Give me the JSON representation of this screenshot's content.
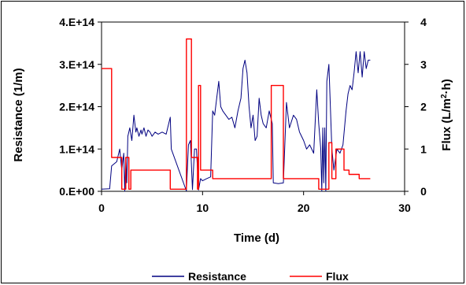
{
  "chart_data": {
    "type": "line",
    "xlabel": "Time (d)",
    "ylabel": "Resistance (1/m)",
    "y2label_main": "Flux (L/m",
    "y2label_sup": "2",
    "y2label_tail": "·h)",
    "xlim": [
      0,
      30
    ],
    "ylim": [
      0,
      400000000000000.0
    ],
    "y2lim": [
      0,
      4
    ],
    "x_ticks": [
      "0",
      "10",
      "20",
      "30"
    ],
    "y_ticks": [
      "0.E+00",
      "1.E+14",
      "2.E+14",
      "3.E+14",
      "4.E+14"
    ],
    "y2_ticks": [
      "0",
      "1",
      "2",
      "3",
      "4"
    ],
    "legend_position": "bottom",
    "series": [
      {
        "name": "Resistance",
        "color": "#000080",
        "axis": "left",
        "x": [
          0,
          0.8,
          1.0,
          1.5,
          1.8,
          2.0,
          2.2,
          2.3,
          2.4,
          2.5,
          2.6,
          2.8,
          3.0,
          3.2,
          3.4,
          3.5,
          3.7,
          3.9,
          4.0,
          4.2,
          4.4,
          4.6,
          4.8,
          5.0,
          5.3,
          5.6,
          6.0,
          6.4,
          6.8,
          6.9,
          8.4,
          8.6,
          8.8,
          9.0,
          9.2,
          9.4,
          9.6,
          9.8,
          10.0,
          10.4,
          10.8,
          11.0,
          11.2,
          11.4,
          11.6,
          11.8,
          12.0,
          12.3,
          12.6,
          12.9,
          13.2,
          13.5,
          13.8,
          14.0,
          14.2,
          14.4,
          14.6,
          14.8,
          15.0,
          15.2,
          15.4,
          15.6,
          15.8,
          16.0,
          16.3,
          16.6,
          16.9,
          17.0,
          17.5,
          18.0,
          18.3,
          18.6,
          19.0,
          19.3,
          19.6,
          20.0,
          20.3,
          20.6,
          21.0,
          21.3,
          21.5,
          21.7,
          21.8,
          21.9,
          22.0,
          22.1,
          22.2,
          22.3,
          22.5,
          22.8,
          23.0,
          23.3,
          23.6,
          23.9,
          24.2,
          24.4,
          24.6,
          24.8,
          25.0,
          25.2,
          25.4,
          25.6,
          25.8,
          26.0,
          26.2,
          26.4,
          26.6
        ],
        "values": [
          5000000000000.0,
          6000000000000.0,
          60000000000000.0,
          70000000000000.0,
          100000000000000.0,
          50000000000000.0,
          90000000000000.0,
          0,
          80000000000000.0,
          20000000000000.0,
          130000000000000.0,
          150000000000000.0,
          120000000000000.0,
          180000000000000.0,
          140000000000000.0,
          150000000000000.0,
          130000000000000.0,
          145000000000000.0,
          135000000000000.0,
          150000000000000.0,
          130000000000000.0,
          145000000000000.0,
          140000000000000.0,
          130000000000000.0,
          140000000000000.0,
          135000000000000.0,
          140000000000000.0,
          135000000000000.0,
          175000000000000.0,
          100000000000000.0,
          1000000000000.0,
          110000000000000.0,
          120000000000000.0,
          4000000000000.0,
          100000000000000.0,
          100000000000000.0,
          3000000000000.0,
          30000000000000.0,
          25000000000000.0,
          30000000000000.0,
          34000000000000.0,
          190000000000000.0,
          180000000000000.0,
          220000000000000.0,
          260000000000000.0,
          200000000000000.0,
          190000000000000.0,
          180000000000000.0,
          170000000000000.0,
          175000000000000.0,
          150000000000000.0,
          190000000000000.0,
          220000000000000.0,
          290000000000000.0,
          310000000000000.0,
          280000000000000.0,
          200000000000000.0,
          150000000000000.0,
          180000000000000.0,
          120000000000000.0,
          130000000000000.0,
          220000000000000.0,
          180000000000000.0,
          160000000000000.0,
          150000000000000.0,
          190000000000000.0,
          160000000000000.0,
          20000000000000.0,
          18000000000000.0,
          20000000000000.0,
          210000000000000.0,
          150000000000000.0,
          180000000000000.0,
          170000000000000.0,
          140000000000000.0,
          120000000000000.0,
          100000000000000.0,
          110000000000000.0,
          90000000000000.0,
          240000000000000.0,
          160000000000000.0,
          100000000000000.0,
          0,
          150000000000000.0,
          20000000000000.0,
          150000000000000.0,
          0,
          260000000000000.0,
          300000000000000.0,
          100000000000000.0,
          50000000000000.0,
          100000000000000.0,
          90000000000000.0,
          110000000000000.0,
          190000000000000.0,
          230000000000000.0,
          250000000000000.0,
          240000000000000.0,
          280000000000000.0,
          330000000000000.0,
          280000000000000.0,
          330000000000000.0,
          270000000000000.0,
          330000000000000.0,
          290000000000000.0,
          310000000000000.0,
          310000000000000.0
        ]
      },
      {
        "name": "Flux",
        "color": "#ff0000",
        "axis": "right",
        "x": [
          0,
          1.0,
          1.0,
          2.0,
          2.0,
          2.4,
          2.4,
          2.7,
          2.7,
          2.9,
          2.9,
          3.0,
          3.0,
          6.8,
          6.8,
          8.4,
          8.4,
          8.9,
          8.9,
          9.5,
          9.5,
          9.6,
          9.6,
          9.8,
          9.8,
          11.0,
          11.0,
          11.8,
          11.8,
          16.8,
          16.8,
          18.0,
          18.0,
          21.5,
          21.5,
          22.5,
          22.5,
          22.8,
          22.8,
          23.2,
          23.2,
          24.0,
          24.0,
          24.5,
          24.5,
          25.5,
          25.5,
          26.6
        ],
        "values": [
          2.9,
          2.9,
          0.8,
          0.8,
          0.05,
          0.05,
          0.8,
          0.8,
          0.05,
          0.05,
          0.5,
          0.5,
          0.5,
          0.5,
          0.05,
          0.05,
          3.6,
          3.6,
          0.8,
          0.8,
          0.05,
          0.05,
          2.5,
          2.5,
          0.5,
          0.5,
          0.3,
          0.3,
          0.3,
          0.3,
          2.5,
          2.5,
          0.3,
          0.3,
          0.05,
          0.05,
          1.15,
          1.15,
          0.3,
          0.3,
          1.0,
          1.0,
          0.5,
          0.5,
          0.4,
          0.4,
          0.3,
          0.3
        ]
      }
    ]
  }
}
